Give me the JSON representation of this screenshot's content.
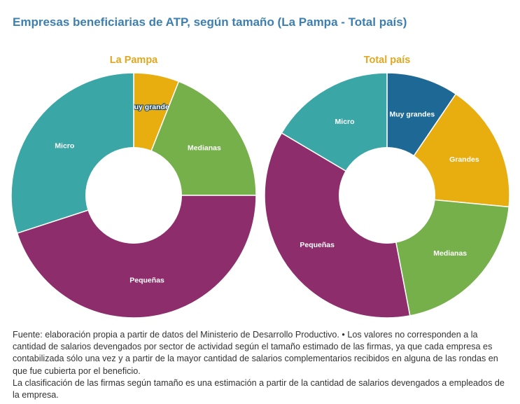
{
  "title": "Empresas beneficiarias de ATP, según tamaño (La Pampa - Total país)",
  "chart_data": [
    {
      "type": "pie",
      "title": "La Pampa",
      "categories": [
        "Muy grandes",
        "Medianas",
        "Pequeñas",
        "Micro"
      ],
      "values": [
        6,
        19,
        45,
        30
      ],
      "colors": [
        "#e8ad0f",
        "#76b04b",
        "#8e2d6b",
        "#3aa6a6"
      ]
    },
    {
      "type": "pie",
      "title": "Total país",
      "categories": [
        "Muy grandes",
        "Grandes",
        "Medianas",
        "Pequeñas",
        "Micro"
      ],
      "values": [
        9.5,
        17,
        20.5,
        36.5,
        16.5
      ],
      "colors": [
        "#1e6896",
        "#e8ad0f",
        "#76b04b",
        "#8e2d6b",
        "#3aa6a6"
      ]
    }
  ],
  "footer": {
    "line1": "Fuente: elaboración propia a partir de datos del Ministerio de Desarrollo Productivo. • Los valores no corresponden a la cantidad de salarios devengados por sector de actividad según el tamaño estimado de las firmas, ya que cada empresa es contabilizada sólo una vez y a partir de la mayor cantidad de salarios complementarios recibidos en alguna de las rondas en que fue cubierta por el beneficio.",
    "line2": "La clasificación de las firmas según tamaño es una estimación a partir de la cantidad de salarios devengados a empleados de la empresa."
  }
}
